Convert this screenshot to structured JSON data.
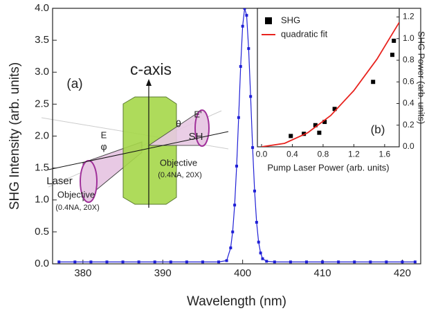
{
  "chart_data": [
    {
      "type": "line",
      "xlabel": "Wavelength (nm)",
      "ylabel": "SHG Intensity (arb. units)",
      "xlim": [
        376.2,
        422.3
      ],
      "ylim": [
        0,
        4.0
      ],
      "xticks": [
        380,
        390,
        400,
        410,
        420
      ],
      "yticks": [
        {
          "value": 0,
          "label": "0.0"
        },
        0.5,
        {
          "value": 1,
          "label": "1.0"
        },
        1.5,
        {
          "value": 2,
          "label": "2.0"
        },
        2.5,
        {
          "value": 3,
          "label": "3.0"
        },
        3.5,
        {
          "value": 4,
          "label": "4.0"
        }
      ],
      "series": [
        {
          "color": "#1f1fd6",
          "x": [
            377,
            379,
            381,
            383,
            385,
            387,
            389,
            391,
            393,
            395,
            397,
            398,
            398.5,
            398.75,
            399,
            399.25,
            399.5,
            399.75,
            400,
            400.25,
            400.5,
            400.75,
            401,
            401.25,
            401.5,
            401.75,
            402,
            402.25,
            402.5,
            403,
            404,
            406,
            408,
            410,
            412,
            414,
            416,
            418,
            420,
            421.6
          ],
          "values": [
            0.03,
            0.03,
            0.03,
            0.03,
            0.03,
            0.03,
            0.03,
            0.03,
            0.03,
            0.03,
            0.03,
            0.05,
            0.25,
            0.5,
            0.92,
            1.53,
            2.29,
            3.09,
            3.72,
            4.0,
            3.89,
            3.37,
            2.62,
            1.82,
            1.14,
            0.65,
            0.34,
            0.17,
            0.08,
            0.04,
            0.03,
            0.03,
            0.03,
            0.03,
            0.03,
            0.03,
            0.03,
            0.03,
            0.03,
            0.03
          ]
        }
      ],
      "annotations": [
        "(a)",
        "c-axis",
        "E",
        "φ",
        "Laser",
        "Objective",
        "(0.4NA, 20X)",
        "E'",
        "θ",
        "SH",
        "Objective",
        "(0.4NA, 20X)"
      ]
    },
    {
      "type": "scatter",
      "xlabel": "Pump Laser Power (arb. units)",
      "ylabel": "SHG Power (arb. units)",
      "xlim": [
        -0.054,
        1.79
      ],
      "ylim": [
        0,
        1.28
      ],
      "xticks": [
        {
          "value": 0,
          "label": "0.0"
        },
        0.4,
        0.8,
        1.2,
        1.6
      ],
      "yticks": [
        {
          "value": 0,
          "label": "0.0"
        },
        0.2,
        0.4,
        0.6,
        0.8,
        {
          "value": 1,
          "label": "1.0"
        },
        1.2
      ],
      "series": [
        {
          "name": "SHG",
          "color": "#000000",
          "x": [
            0.38,
            0.55,
            0.7,
            0.75,
            0.82,
            0.95,
            1.45,
            1.7,
            1.72
          ],
          "values": [
            0.1,
            0.12,
            0.2,
            0.13,
            0.23,
            0.35,
            0.6,
            0.85,
            0.98
          ]
        },
        {
          "name": "quadratic fit",
          "color": "#e8231e",
          "x": [
            0,
            0.3,
            0.6,
            0.9,
            1.2,
            1.5,
            1.79
          ],
          "values": [
            0,
            0.032,
            0.13,
            0.29,
            0.52,
            0.81,
            1.15
          ]
        }
      ],
      "annotations": [
        "(b)"
      ]
    }
  ]
}
